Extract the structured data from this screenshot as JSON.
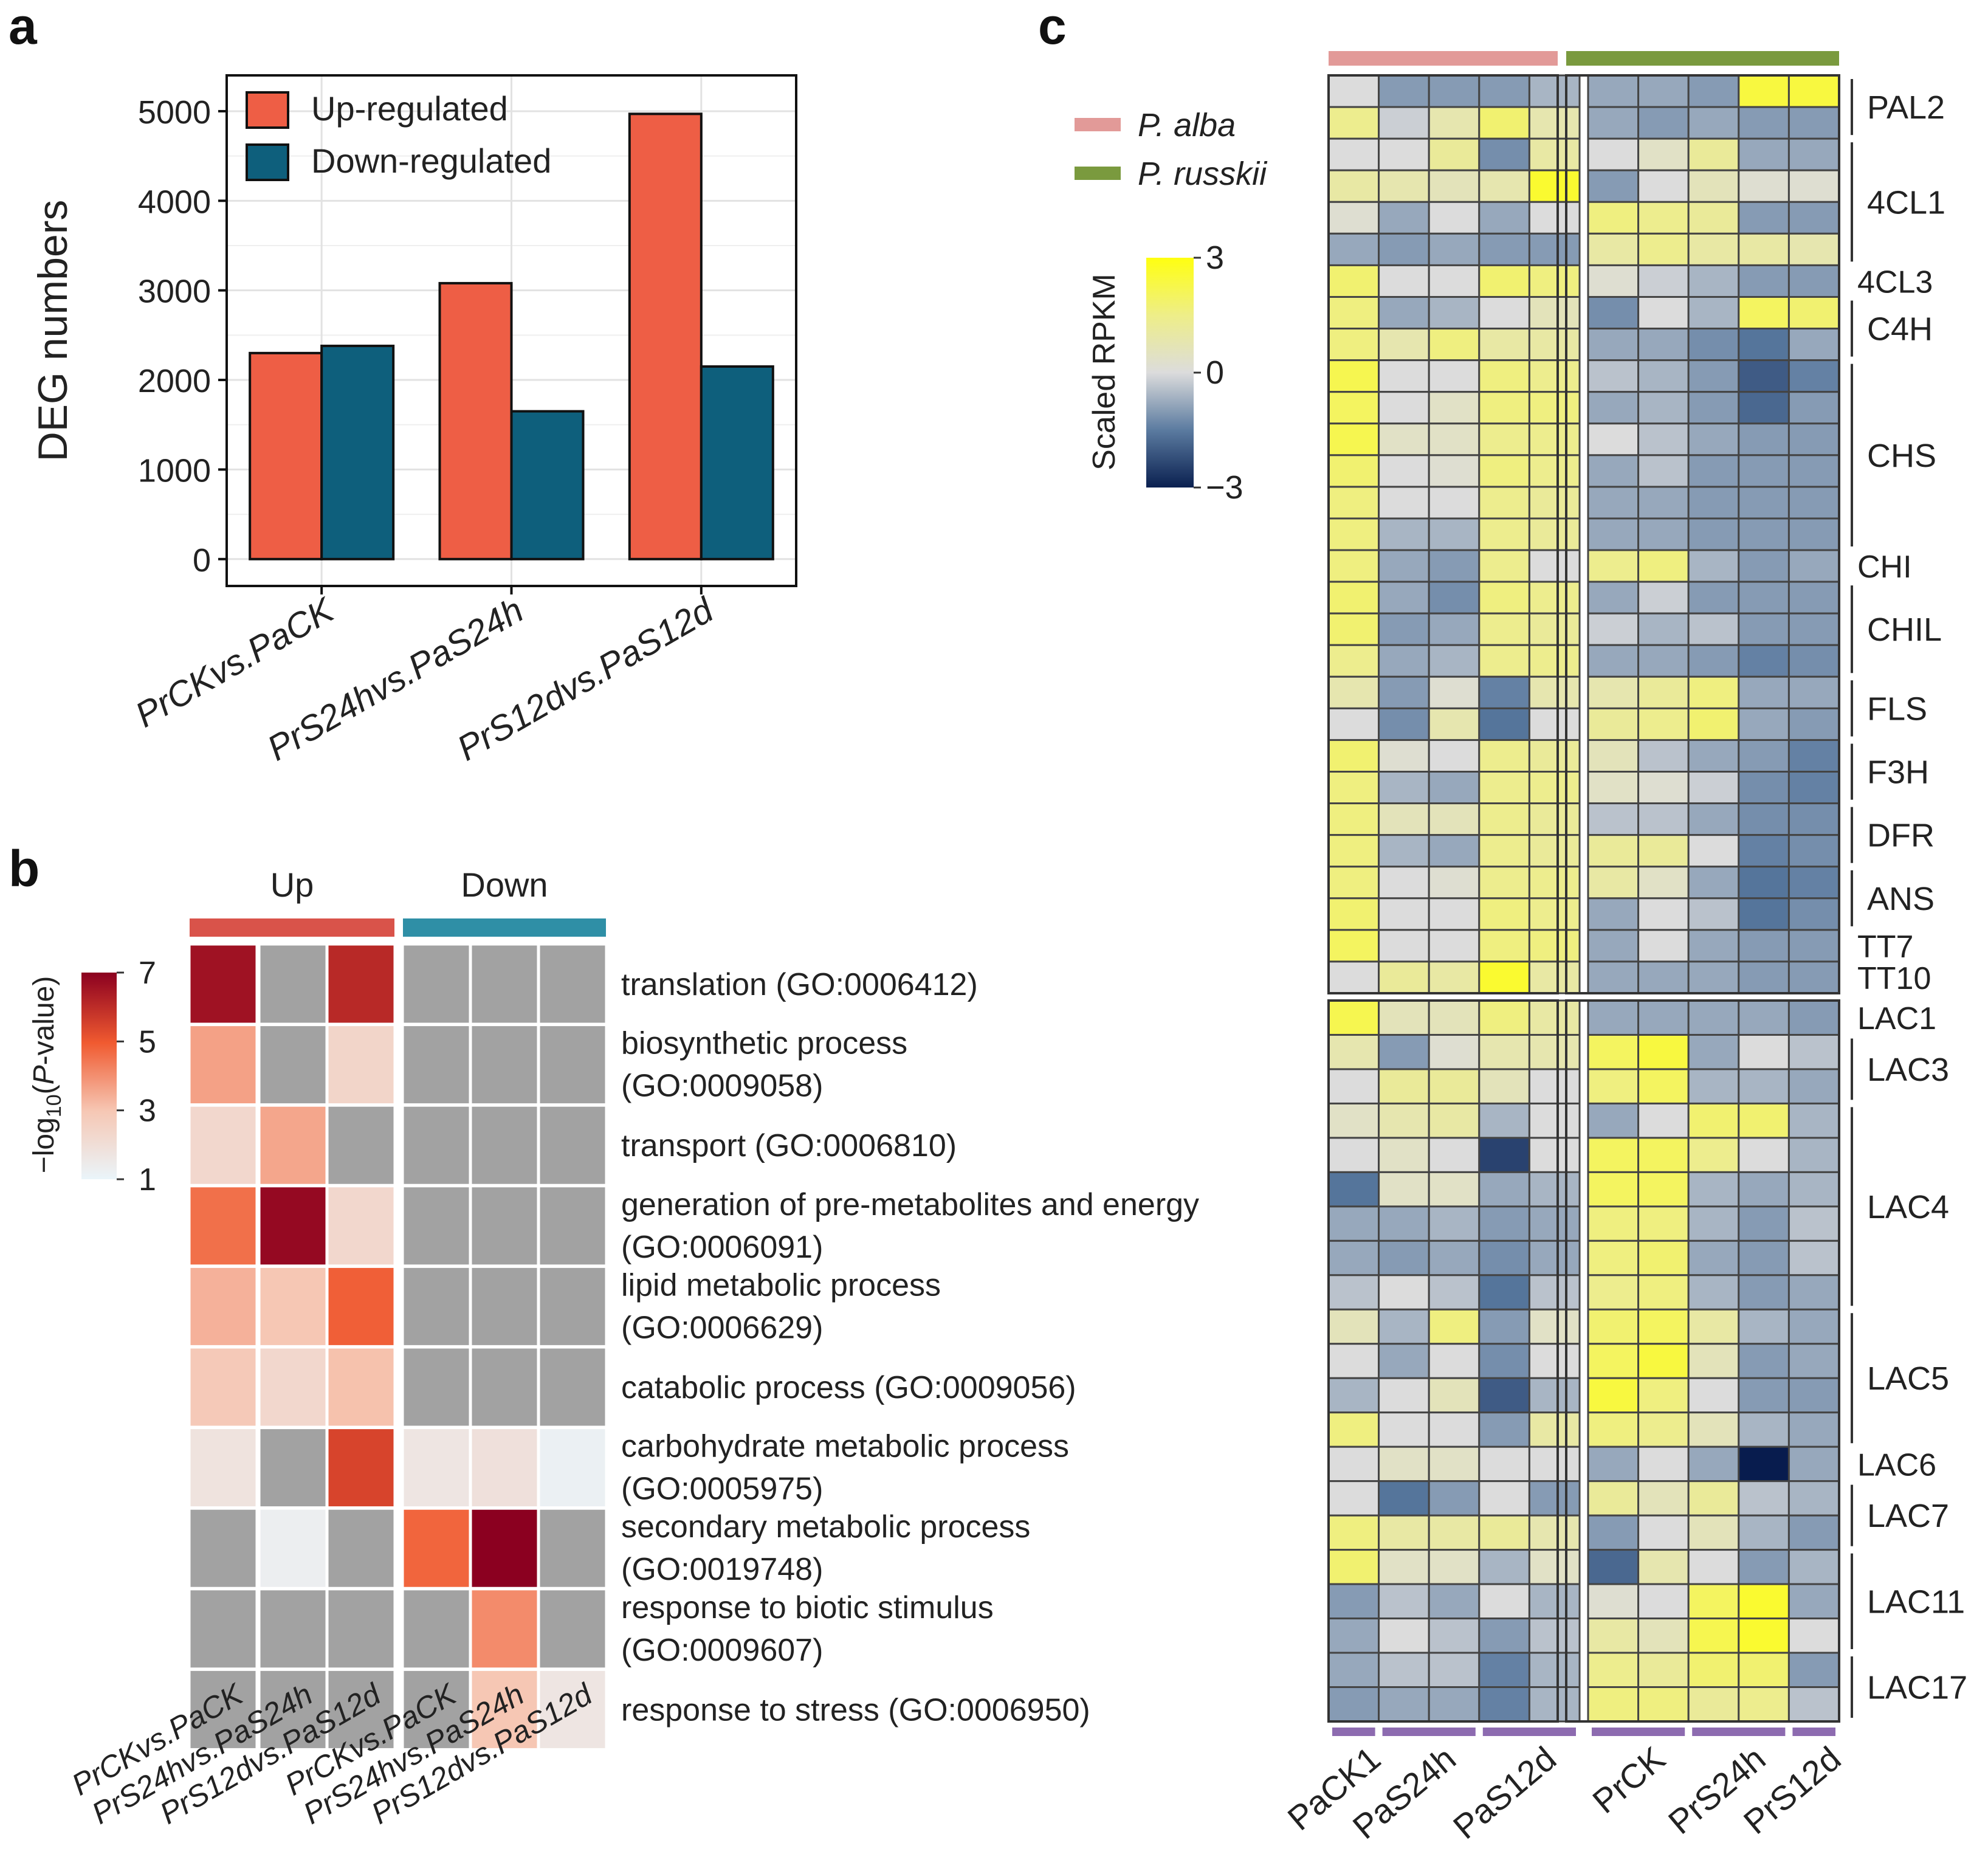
{
  "panels": {
    "a": "a",
    "b": "b",
    "c": "c"
  },
  "chart_data": [
    {
      "id": "a",
      "type": "bar",
      "ylabel": "DEG numbers",
      "ylim": [
        -300,
        5400
      ],
      "yticks": [
        0,
        1000,
        2000,
        3000,
        4000,
        5000
      ],
      "grid": true,
      "categories": [
        "PrCKvs.PaCK",
        "PrS24hvs.PaS24h",
        "PrS12dvs.PaS12d"
      ],
      "series": [
        {
          "name": "Up-regulated",
          "color": "#EE5E45",
          "values": [
            2300,
            3080,
            4970
          ]
        },
        {
          "name": "Down-regulated",
          "color": "#0E5F7C",
          "values": [
            2380,
            1650,
            2150
          ]
        }
      ],
      "legend": "top-left"
    },
    {
      "id": "b",
      "type": "heatmap",
      "groups": [
        {
          "name": "Up",
          "color": "#D9534A",
          "span": 3
        },
        {
          "name": "Down",
          "color": "#2F8FA6",
          "span": 3
        }
      ],
      "columns": [
        "PrCKvs.PaCK",
        "PrS24hvs.PaS24h",
        "PrS12dvs.PaS12d",
        "PrCKvs.PaCK",
        "PrS24hvs.PaS24h",
        "PrS12dvs.PaS12d"
      ],
      "rows": [
        [
          "translation (GO:0006412)"
        ],
        [
          "biosynthetic process",
          "(GO:0009058)"
        ],
        [
          "transport (GO:0006810)"
        ],
        [
          "generation of pre-metabolites and energy",
          "(GO:0006091)"
        ],
        [
          "lipid metabolic process",
          "(GO:0006629)"
        ],
        [
          "catabolic process (GO:0009056)"
        ],
        [
          "carbohydrate metabolic process",
          "(GO:0005975)"
        ],
        [
          "secondary metabolic process",
          "(GO:0019748)"
        ],
        [
          "response to biotic stimulus",
          "(GO:0009607)"
        ],
        [
          "response to stress (GO:0006950)"
        ]
      ],
      "values": [
        [
          6.6,
          null,
          6.1,
          null,
          null,
          null
        ],
        [
          3.7,
          null,
          2.4,
          null,
          null,
          null
        ],
        [
          2.3,
          3.6,
          null,
          null,
          null,
          null
        ],
        [
          4.6,
          6.8,
          2.3,
          null,
          null,
          null
        ],
        [
          3.4,
          3.0,
          4.9,
          null,
          null,
          null
        ],
        [
          2.9,
          2.3,
          3.1,
          null,
          null,
          null
        ],
        [
          1.8,
          null,
          5.5,
          1.7,
          1.9,
          1.2
        ],
        [
          null,
          1.3,
          null,
          4.8,
          7.0,
          null
        ],
        [
          null,
          null,
          null,
          null,
          4.1,
          null
        ],
        [
          null,
          null,
          null,
          null,
          3.0,
          1.7
        ]
      ],
      "colorbar": {
        "label": "-log10(P-value)",
        "ticks": [
          1,
          3,
          5,
          7
        ]
      }
    },
    {
      "id": "c",
      "type": "heatmap",
      "species": [
        {
          "name": "P. alba",
          "color": "#E29A98"
        },
        {
          "name": "P. russkii",
          "color": "#7A9A3E"
        }
      ],
      "colorbar": {
        "label": "Scaled RPKM",
        "ticks": [
          "3",
          "0",
          "−3"
        ]
      },
      "sample_groups": [
        "PaCK1",
        "PaS24h",
        "PaS12d",
        "PrCK",
        "PrS24h",
        "PrS12d"
      ],
      "gene_labels": [
        {
          "name": "PAL2",
          "first": 0,
          "last": 1
        },
        {
          "name": "4CL1",
          "first": 2,
          "last": 5
        },
        {
          "name": "4CL3",
          "first": 6,
          "last": 6
        },
        {
          "name": "C4H",
          "first": 7,
          "last": 8
        },
        {
          "name": "CHS",
          "first": 9,
          "last": 14
        },
        {
          "name": "CHI",
          "first": 15,
          "last": 15
        },
        {
          "name": "CHIL",
          "first": 16,
          "last": 18
        },
        {
          "name": "FLS",
          "first": 19,
          "last": 20
        },
        {
          "name": "F3H",
          "first": 21,
          "last": 22
        },
        {
          "name": "DFR",
          "first": 23,
          "last": 24
        },
        {
          "name": "ANS",
          "first": 25,
          "last": 26
        },
        {
          "name": "TT7",
          "first": 27,
          "last": 27
        },
        {
          "name": "TT10",
          "first": 28,
          "last": 28
        },
        {
          "name": "LAC1",
          "first": 29,
          "last": 29
        },
        {
          "name": "LAC3",
          "first": 30,
          "last": 31
        },
        {
          "name": "LAC4",
          "first": 32,
          "last": 37
        },
        {
          "name": "LAC5",
          "first": 38,
          "last": 41
        },
        {
          "name": "LAC6",
          "first": 42,
          "last": 42
        },
        {
          "name": "LAC7",
          "first": 43,
          "last": 44
        },
        {
          "name": "LAC11",
          "first": 45,
          "last": 47
        },
        {
          "name": "LAC17",
          "first": 48,
          "last": 49
        }
      ],
      "values": [
        [
          0.0,
          -1.0,
          -1.0,
          -1.0,
          -0.6,
          -0.8,
          -0.8,
          -1.0,
          2.4,
          2.4
        ],
        [
          1.4,
          -0.2,
          0.8,
          1.8,
          0.8,
          -0.8,
          -1.0,
          -0.8,
          -1.0,
          -1.0
        ],
        [
          0.0,
          0.0,
          1.2,
          -1.2,
          1.0,
          0.0,
          0.4,
          1.2,
          -0.8,
          -0.8
        ],
        [
          1.0,
          0.8,
          0.6,
          0.8,
          2.6,
          -1.0,
          0.0,
          0.6,
          0.2,
          0.2
        ],
        [
          0.2,
          -0.8,
          0.0,
          -0.8,
          0.0,
          1.6,
          1.4,
          1.2,
          -1.0,
          -1.0
        ],
        [
          -0.8,
          -1.0,
          -0.8,
          -1.0,
          -1.0,
          1.0,
          1.4,
          1.0,
          1.0,
          0.8
        ],
        [
          1.8,
          0.0,
          0.0,
          1.8,
          1.6,
          0.2,
          -0.2,
          -0.6,
          -1.0,
          -1.0
        ],
        [
          1.6,
          -0.8,
          -0.6,
          0.0,
          0.6,
          -1.2,
          0.0,
          -0.6,
          2.0,
          1.8
        ],
        [
          1.6,
          0.8,
          1.6,
          1.0,
          1.0,
          -0.8,
          -0.8,
          -1.2,
          -1.6,
          -0.8
        ],
        [
          2.2,
          0.0,
          0.0,
          1.6,
          1.4,
          -0.4,
          -0.6,
          -1.0,
          -2.0,
          -1.4
        ],
        [
          2.0,
          0.0,
          0.4,
          1.6,
          1.6,
          -0.8,
          -0.6,
          -1.0,
          -1.8,
          -1.0
        ],
        [
          2.2,
          0.4,
          0.4,
          1.4,
          1.4,
          0.0,
          -0.4,
          -0.8,
          -1.0,
          -1.0
        ],
        [
          1.8,
          0.0,
          0.2,
          1.6,
          1.4,
          -0.8,
          -0.4,
          -1.0,
          -1.0,
          -1.0
        ],
        [
          1.6,
          0.0,
          0.0,
          1.4,
          1.2,
          -0.8,
          -0.8,
          -1.0,
          -1.0,
          -1.0
        ],
        [
          1.6,
          -0.6,
          -0.6,
          1.4,
          1.2,
          -0.8,
          -0.8,
          -1.0,
          -1.0,
          -1.0
        ],
        [
          1.6,
          -0.8,
          -1.0,
          1.4,
          0.0,
          1.4,
          1.6,
          -0.6,
          -1.0,
          -0.8
        ],
        [
          1.8,
          -0.8,
          -1.2,
          1.6,
          1.4,
          -0.8,
          -0.2,
          -1.0,
          -1.0,
          -1.0
        ],
        [
          1.8,
          -1.0,
          -0.8,
          1.4,
          1.2,
          -0.2,
          -0.6,
          -0.4,
          -1.0,
          -1.0
        ],
        [
          1.4,
          -0.8,
          -0.6,
          1.4,
          1.4,
          -0.8,
          -0.8,
          -1.0,
          -1.4,
          -1.2
        ],
        [
          0.8,
          -1.0,
          0.2,
          -1.4,
          0.8,
          0.8,
          1.2,
          1.6,
          -0.8,
          -0.8
        ],
        [
          0.0,
          -1.2,
          0.8,
          -1.6,
          0.0,
          1.2,
          1.4,
          1.8,
          -0.8,
          -1.0
        ],
        [
          1.8,
          0.2,
          0.0,
          1.4,
          1.2,
          0.6,
          -0.4,
          -0.8,
          -1.0,
          -1.4
        ],
        [
          1.6,
          -0.6,
          -0.8,
          1.4,
          1.4,
          0.4,
          0.2,
          -0.2,
          -1.2,
          -1.4
        ],
        [
          1.6,
          0.6,
          0.6,
          1.4,
          1.2,
          -0.4,
          -0.4,
          -0.8,
          -1.2,
          -1.2
        ],
        [
          1.6,
          -0.6,
          -0.8,
          1.4,
          1.2,
          1.2,
          1.2,
          0.0,
          -1.4,
          -1.2
        ],
        [
          1.6,
          0.0,
          0.2,
          1.4,
          1.4,
          1.0,
          0.4,
          -0.8,
          -1.6,
          -1.4
        ],
        [
          1.8,
          0.0,
          0.0,
          1.6,
          1.4,
          -0.8,
          0.0,
          -0.4,
          -1.6,
          -1.2
        ],
        [
          2.0,
          0.0,
          0.0,
          1.6,
          1.6,
          -0.8,
          0.0,
          -0.8,
          -1.0,
          -1.0
        ],
        [
          0.0,
          1.2,
          1.0,
          2.6,
          1.0,
          -0.8,
          -0.8,
          -0.8,
          -1.0,
          -1.0
        ],
        [
          2.2,
          0.6,
          0.6,
          1.6,
          1.0,
          -0.8,
          -0.8,
          -0.8,
          -0.8,
          -1.0
        ],
        [
          0.8,
          -1.0,
          0.2,
          0.8,
          0.8,
          2.0,
          2.4,
          -0.8,
          0.0,
          -0.4
        ],
        [
          0.0,
          1.2,
          1.2,
          0.6,
          0.0,
          1.6,
          2.0,
          -0.6,
          -0.6,
          -0.8
        ],
        [
          0.4,
          0.8,
          1.0,
          -0.6,
          0.0,
          -0.8,
          0.0,
          1.8,
          1.8,
          -0.6
        ],
        [
          0.0,
          0.4,
          0.0,
          -2.4,
          0.0,
          2.0,
          2.0,
          1.4,
          0.0,
          -0.6
        ],
        [
          -1.6,
          0.4,
          0.4,
          -0.8,
          -0.6,
          2.0,
          2.0,
          -0.6,
          -0.8,
          -0.6
        ],
        [
          -0.8,
          -0.8,
          -0.6,
          -1.0,
          -0.8,
          1.6,
          1.6,
          -0.6,
          -1.0,
          -0.4
        ],
        [
          -0.8,
          -1.0,
          -0.8,
          -1.2,
          -0.8,
          1.6,
          1.8,
          -0.8,
          -1.0,
          -0.4
        ],
        [
          -0.4,
          0.0,
          -0.4,
          -1.6,
          -0.4,
          1.4,
          1.6,
          -0.6,
          -1.0,
          -0.8
        ],
        [
          0.6,
          -0.6,
          1.6,
          -1.0,
          0.4,
          1.8,
          2.0,
          1.0,
          -0.6,
          -0.8
        ],
        [
          0.0,
          -0.8,
          0.0,
          -1.2,
          0.0,
          2.0,
          2.4,
          0.6,
          -1.0,
          -0.8
        ],
        [
          -0.6,
          0.0,
          0.6,
          -2.0,
          -0.6,
          2.4,
          1.6,
          0.0,
          -1.0,
          -1.0
        ],
        [
          1.6,
          0.0,
          0.0,
          -1.0,
          1.0,
          1.6,
          1.4,
          0.6,
          -0.6,
          -0.8
        ],
        [
          0.0,
          0.4,
          0.4,
          0.0,
          0.0,
          -0.8,
          0.0,
          -0.8,
          -3.0,
          -0.8
        ],
        [
          0.0,
          -1.6,
          -1.0,
          0.0,
          -1.0,
          1.2,
          0.6,
          1.2,
          -0.4,
          -0.6
        ],
        [
          1.6,
          1.0,
          1.0,
          1.2,
          0.8,
          -1.0,
          0.0,
          0.6,
          -0.6,
          -1.0
        ],
        [
          1.8,
          0.4,
          0.4,
          -0.6,
          0.4,
          -1.8,
          0.8,
          0.0,
          -1.0,
          -0.6
        ],
        [
          -1.0,
          -0.4,
          -0.8,
          0.0,
          -0.6,
          0.2,
          0.0,
          2.0,
          2.6,
          -0.8
        ],
        [
          -0.8,
          0.0,
          -0.4,
          -1.0,
          -0.4,
          1.0,
          0.6,
          2.2,
          2.6,
          0.0
        ],
        [
          -0.8,
          -0.4,
          -0.4,
          -1.4,
          -0.6,
          1.4,
          1.2,
          1.8,
          1.8,
          -1.0
        ],
        [
          -1.0,
          -0.8,
          -0.8,
          -1.4,
          -0.6,
          1.6,
          1.6,
          1.2,
          1.4,
          -0.4
        ]
      ]
    }
  ]
}
